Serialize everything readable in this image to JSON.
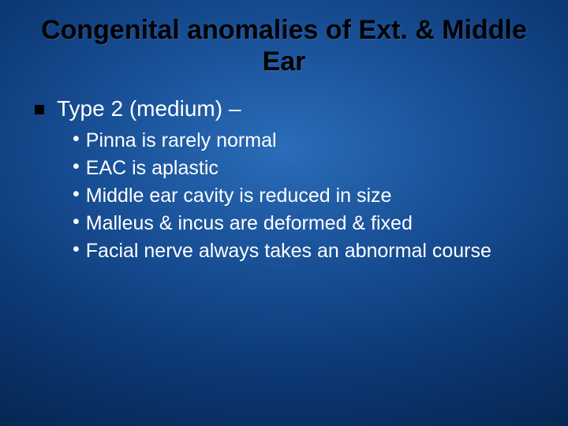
{
  "slide": {
    "background": {
      "gradient_center": "#2a6db8",
      "gradient_mid1": "#1a5299",
      "gradient_mid2": "#0d3a78",
      "gradient_outer1": "#062855",
      "gradient_outer2": "#031a3d"
    },
    "title": {
      "text": "Congenital anomalies of Ext. & Middle Ear",
      "color": "#000000",
      "fontsize": 34,
      "font_weight": "bold",
      "align": "center"
    },
    "level1": {
      "bullet_shape": "square",
      "bullet_color": "#000000",
      "bullet_size": 12,
      "text": "Type 2 (medium) –",
      "color": "#ffffff",
      "fontsize": 28
    },
    "level2": {
      "bullet_char": "•",
      "bullet_color": "#ffffff",
      "fontsize": 25,
      "color": "#ffffff",
      "items": [
        "Pinna is rarely normal",
        "EAC is aplastic",
        "Middle ear cavity is reduced in size",
        "Malleus & incus are deformed & fixed",
        "Facial nerve always takes an abnormal course"
      ]
    }
  }
}
